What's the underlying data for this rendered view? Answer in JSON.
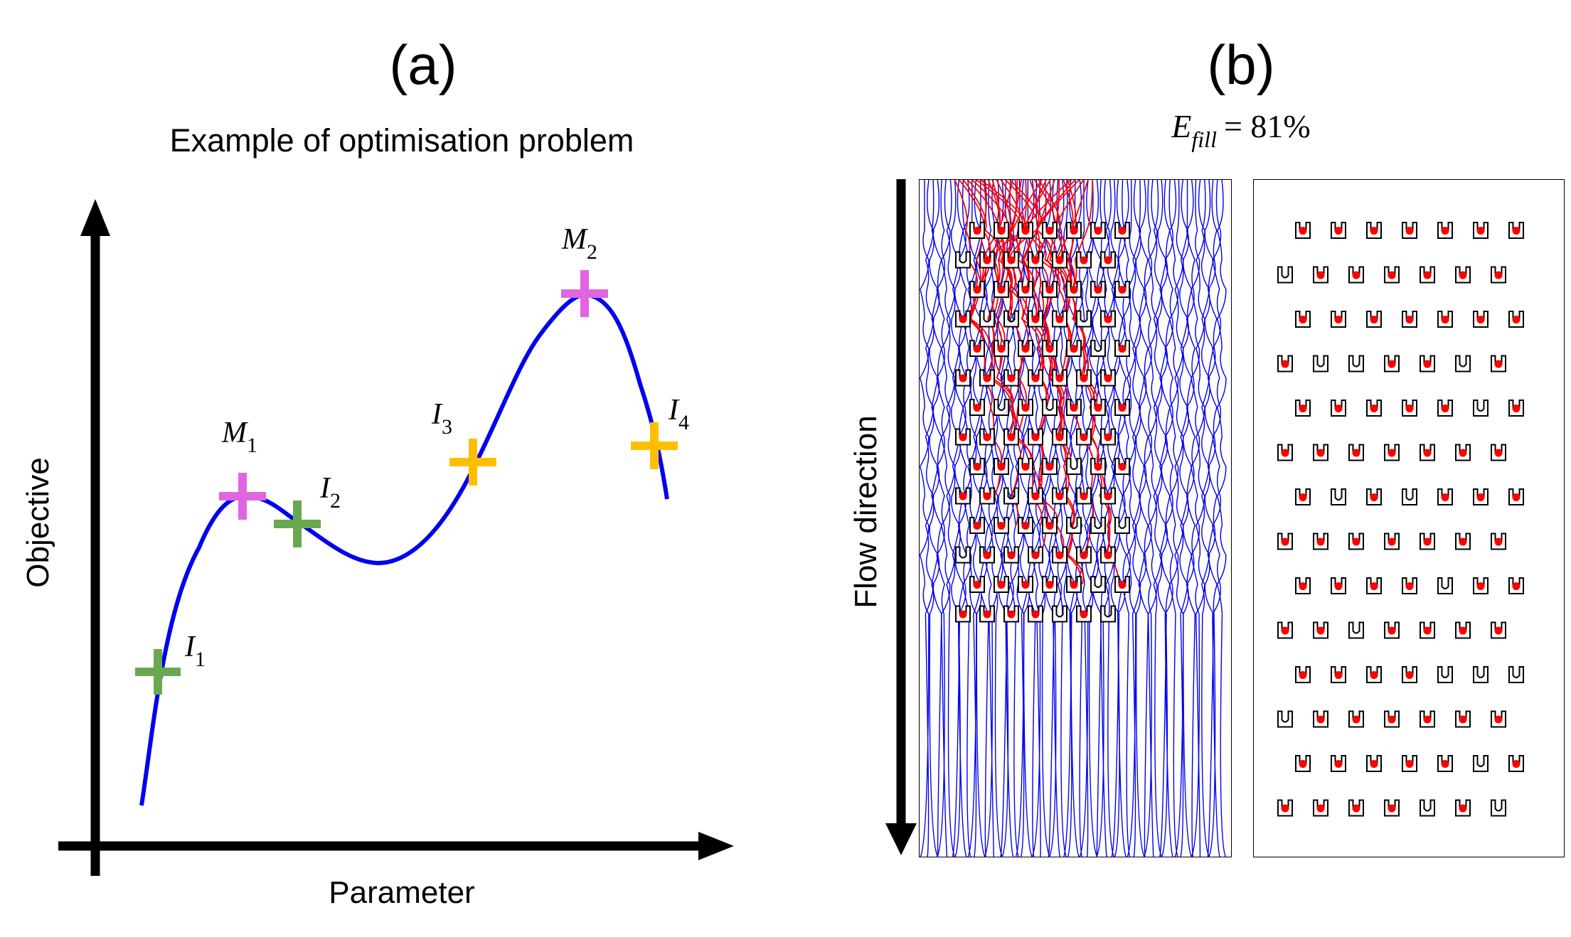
{
  "panel_a": {
    "tag": "(a)",
    "title": "Example of optimisation problem",
    "x_axis_label": "Parameter",
    "y_axis_label": "Objective",
    "curve_color": "#0000ee",
    "markers": [
      {
        "id": "I1",
        "letter": "I",
        "sub": "1",
        "color": "#6aa84f"
      },
      {
        "id": "M1",
        "letter": "M",
        "sub": "1",
        "color": "#e066e0"
      },
      {
        "id": "I2",
        "letter": "I",
        "sub": "2",
        "color": "#6aa84f"
      },
      {
        "id": "I3",
        "letter": "I",
        "sub": "3",
        "color": "#ffbf00"
      },
      {
        "id": "M2",
        "letter": "M",
        "sub": "2",
        "color": "#e066e0"
      },
      {
        "id": "I4",
        "letter": "I",
        "sub": "4",
        "color": "#ffbf00"
      }
    ]
  },
  "panel_b": {
    "tag": "(b)",
    "efficiency": {
      "symbol": "E",
      "sub": "fill",
      "equals": "= 81%"
    },
    "flow_label": "Flow direction",
    "streamline_color_particles": "#ff0000",
    "streamline_color_fluid": "#0000ee",
    "trap_rows": 14,
    "traps_per_row": 7
  }
}
